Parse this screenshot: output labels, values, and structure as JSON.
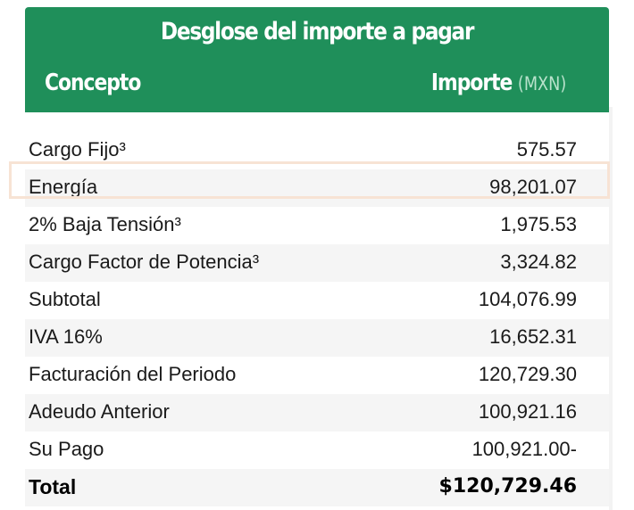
{
  "header": {
    "title": "Desglose del importe a pagar",
    "col_concept": "Concepto",
    "col_amount": "Importe",
    "col_amount_unit": "(MXN)"
  },
  "colors": {
    "header_bg": "#1f8f5a",
    "highlight_border": "#f7e3d4"
  },
  "rows": [
    {
      "label": "Cargo Fijo³",
      "value": "575.57"
    },
    {
      "label": "Energía",
      "value": "98,201.07"
    },
    {
      "label": "2% Baja Tensión³",
      "value": "1,975.53"
    },
    {
      "label": "Cargo Factor de Potencia³",
      "value": "3,324.82"
    },
    {
      "label": "Subtotal",
      "value": "104,076.99"
    },
    {
      "label": "IVA 16%",
      "value": "16,652.31"
    },
    {
      "label": "Facturación del Periodo",
      "value": "120,729.30"
    },
    {
      "label": "Adeudo Anterior",
      "value": "100,921.16"
    },
    {
      "label": "Su Pago",
      "value": "100,921.00-"
    },
    {
      "label": "Total",
      "value": "$120,729.46"
    }
  ]
}
